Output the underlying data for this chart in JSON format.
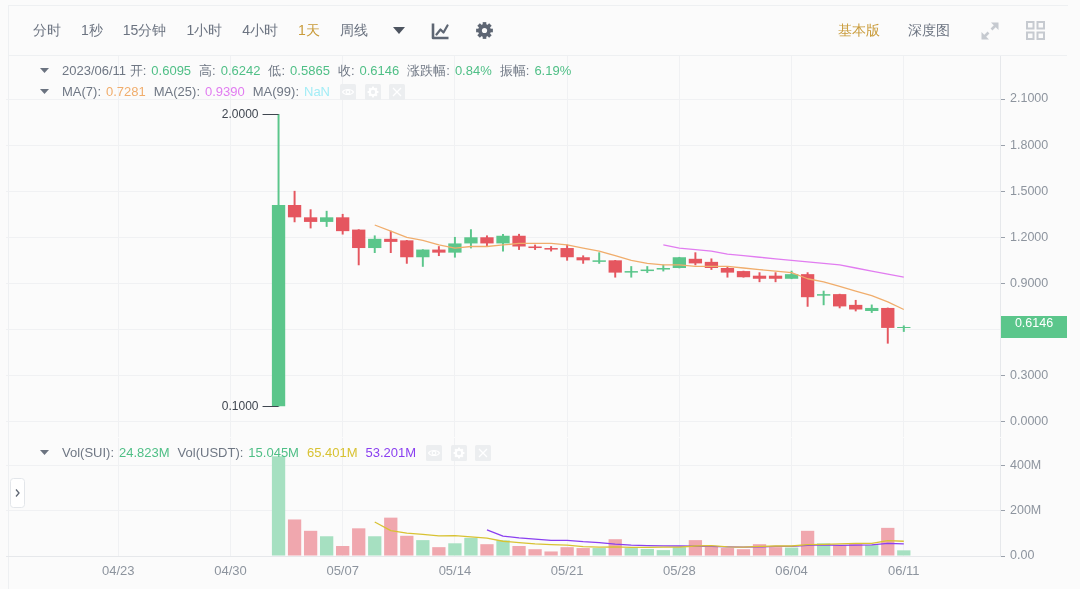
{
  "chart_data": [
    {
      "type": "other",
      "categories": [
        "分时",
        "1秒",
        "15分钟",
        "1小时",
        "4小时",
        "1天",
        "周线",
        "基本版",
        "深度图"
      ],
      "colors": [
        "#6b7380",
        "#6b7380",
        "#6b7380",
        "#6b7380",
        "#6b7380",
        "#c99b3a",
        "#6b7380",
        "#c99b3a",
        "#6b7380"
      ]
    },
    {
      "type": "candlestick",
      "x": [
        "2023-05-03",
        "2023-05-04",
        "2023-05-05",
        "2023-05-06",
        "2023-05-07",
        "2023-05-08",
        "2023-05-09",
        "2023-05-10",
        "2023-05-11",
        "2023-05-12",
        "2023-05-13",
        "2023-05-14",
        "2023-05-15",
        "2023-05-16",
        "2023-05-17",
        "2023-05-18",
        "2023-05-19",
        "2023-05-20",
        "2023-05-21",
        "2023-05-22",
        "2023-05-23",
        "2023-05-24",
        "2023-05-25",
        "2023-05-26",
        "2023-05-27",
        "2023-05-28",
        "2023-05-29",
        "2023-05-30",
        "2023-05-31",
        "2023-06-01",
        "2023-06-02",
        "2023-06-03",
        "2023-06-04",
        "2023-06-05",
        "2023-06-06",
        "2023-06-07",
        "2023-06-08",
        "2023-06-09",
        "2023-06-10",
        "2023-06-11"
      ],
      "ohlc": [
        [
          0.1,
          2.0,
          0.1,
          1.41
        ],
        [
          1.41,
          1.5,
          1.3,
          1.33
        ],
        [
          1.33,
          1.38,
          1.26,
          1.3
        ],
        [
          1.3,
          1.37,
          1.27,
          1.33
        ],
        [
          1.33,
          1.35,
          1.22,
          1.24
        ],
        [
          1.25,
          1.25,
          1.02,
          1.13
        ],
        [
          1.13,
          1.21,
          1.1,
          1.19
        ],
        [
          1.19,
          1.24,
          1.1,
          1.17
        ],
        [
          1.18,
          1.18,
          1.03,
          1.07
        ],
        [
          1.07,
          1.12,
          1.01,
          1.12
        ],
        [
          1.12,
          1.14,
          1.08,
          1.1
        ],
        [
          1.1,
          1.2,
          1.07,
          1.16
        ],
        [
          1.16,
          1.25,
          1.13,
          1.2
        ],
        [
          1.2,
          1.21,
          1.14,
          1.16
        ],
        [
          1.16,
          1.22,
          1.11,
          1.21
        ],
        [
          1.21,
          1.22,
          1.12,
          1.14
        ],
        [
          1.14,
          1.15,
          1.12,
          1.13
        ],
        [
          1.13,
          1.14,
          1.11,
          1.12
        ],
        [
          1.13,
          1.15,
          1.05,
          1.07
        ],
        [
          1.07,
          1.08,
          1.03,
          1.05
        ],
        [
          1.04,
          1.1,
          1.03,
          1.05
        ],
        [
          1.05,
          1.05,
          0.94,
          0.97
        ],
        [
          0.97,
          1.01,
          0.94,
          0.98
        ],
        [
          0.98,
          1.01,
          0.97,
          0.99
        ],
        [
          0.99,
          1.02,
          0.98,
          1.0
        ],
        [
          1.0,
          1.07,
          1.0,
          1.07
        ],
        [
          1.06,
          1.1,
          1.02,
          1.03
        ],
        [
          1.04,
          1.06,
          0.99,
          1.0
        ],
        [
          1.0,
          1.01,
          0.94,
          0.97
        ],
        [
          0.98,
          0.98,
          0.94,
          0.94
        ],
        [
          0.95,
          0.97,
          0.91,
          0.93
        ],
        [
          0.95,
          0.97,
          0.91,
          0.93
        ],
        [
          0.93,
          0.98,
          0.93,
          0.96
        ],
        [
          0.96,
          0.97,
          0.75,
          0.81
        ],
        [
          0.82,
          0.85,
          0.76,
          0.83
        ],
        [
          0.83,
          0.83,
          0.74,
          0.75
        ],
        [
          0.76,
          0.79,
          0.72,
          0.73
        ],
        [
          0.72,
          0.76,
          0.71,
          0.74
        ],
        [
          0.74,
          0.74,
          0.51,
          0.61
        ],
        [
          0.6095,
          0.6242,
          0.5865,
          0.6146
        ]
      ],
      "colors": [
        "#5bc68b",
        "#e5565f",
        "#e5565f",
        "#5bc68b",
        "#e5565f",
        "#e5565f",
        "#5bc68b",
        "#e5565f",
        "#e5565f",
        "#5bc68b",
        "#e5565f",
        "#5bc68b",
        "#5bc68b",
        "#e5565f",
        "#5bc68b",
        "#e5565f",
        "#e5565f",
        "#e5565f",
        "#e5565f",
        "#e5565f",
        "#5bc68b",
        "#e5565f",
        "#5bc68b",
        "#5bc68b",
        "#5bc68b",
        "#5bc68b",
        "#e5565f",
        "#e5565f",
        "#e5565f",
        "#e5565f",
        "#e5565f",
        "#e5565f",
        "#5bc68b",
        "#e5565f",
        "#5bc68b",
        "#e5565f",
        "#e5565f",
        "#5bc68b",
        "#e5565f",
        "#5bc68b"
      ],
      "series": [
        {
          "type": "line",
          "color": "#f0ad6c",
          "values": [
            null,
            null,
            null,
            null,
            null,
            null,
            1.28,
            1.24,
            1.2,
            1.18,
            1.15,
            1.13,
            1.14,
            1.14,
            1.15,
            1.16,
            1.16,
            1.16,
            1.15,
            1.13,
            1.11,
            1.08,
            1.05,
            1.03,
            1.02,
            1.02,
            1.01,
            1.01,
            1.01,
            1.0,
            0.99,
            0.98,
            0.97,
            0.93,
            0.91,
            0.88,
            0.85,
            0.82,
            0.78,
            0.73
          ]
        },
        {
          "type": "line",
          "color": "#e17cf0",
          "values": [
            null,
            null,
            null,
            null,
            null,
            null,
            null,
            null,
            null,
            null,
            null,
            null,
            null,
            null,
            null,
            null,
            null,
            null,
            null,
            null,
            null,
            null,
            null,
            null,
            1.15,
            1.13,
            1.12,
            1.11,
            1.09,
            1.08,
            1.07,
            1.06,
            1.05,
            1.04,
            1.03,
            1.02,
            1.0,
            0.98,
            0.96,
            0.94
          ]
        },
        {
          "type": "line",
          "color": "#a3edf6",
          "values": [
            null,
            null,
            null,
            null,
            null,
            null,
            null,
            null,
            null,
            null,
            null,
            null,
            null,
            null,
            null,
            null,
            null,
            null,
            null,
            null,
            null,
            null,
            null,
            null,
            null,
            null,
            null,
            null,
            null,
            null,
            null,
            null,
            null,
            null,
            null,
            null,
            null,
            null,
            null,
            null
          ]
        }
      ],
      "xlim": [
        "2023-04-16",
        "2023-06-17"
      ],
      "ylim": [
        -0.1,
        2.38
      ],
      "xticks": [
        {
          "value": "2023-04-23",
          "label": null
        },
        {
          "value": "2023-04-30",
          "label": null
        },
        {
          "value": "2023-05-07",
          "label": null
        },
        {
          "value": "2023-05-14",
          "label": null
        },
        {
          "value": "2023-05-21",
          "label": null
        },
        {
          "value": "2023-05-28",
          "label": null
        },
        {
          "value": "2023-06-04",
          "label": null
        },
        {
          "value": "2023-06-11",
          "label": null
        }
      ],
      "yticks": [
        {
          "value": 0,
          "label": "0.0000"
        },
        {
          "value": 0.3,
          "label": "0.3000"
        },
        {
          "value": 0.6,
          "label": null
        },
        {
          "value": 0.9,
          "label": "0.9000"
        },
        {
          "value": 1.2,
          "label": "1.2000"
        },
        {
          "value": 1.5,
          "label": "1.5000"
        },
        {
          "value": 1.8,
          "label": "1.8000"
        },
        {
          "value": 2.1,
          "label": "2.1000"
        }
      ],
      "grid": true,
      "tick_labels": "y",
      "annotations": [
        "2023/06/11 开:",
        "0.6095",
        "高:",
        "0.6242",
        "低:",
        "0.5865",
        "收:",
        "0.6146",
        "涨跌幅:",
        "0.84%",
        "振幅:",
        "6.19%",
        "MA(7):",
        "0.7281",
        "MA(25):",
        "0.9390",
        "MA(99):",
        "NaN",
        {
          "text": "2.0000",
          "x": "2023-05-03",
          "y": 2.0
        },
        {
          "text": "0.1000",
          "x": "2023-05-03",
          "y": 0.1
        },
        "0.6146"
      ]
    },
    {
      "type": "bar",
      "x": [
        "2023-05-03",
        "2023-05-04",
        "2023-05-05",
        "2023-05-06",
        "2023-05-07",
        "2023-05-08",
        "2023-05-09",
        "2023-05-10",
        "2023-05-11",
        "2023-05-12",
        "2023-05-13",
        "2023-05-14",
        "2023-05-15",
        "2023-05-16",
        "2023-05-17",
        "2023-05-18",
        "2023-05-19",
        "2023-05-20",
        "2023-05-21",
        "2023-05-22",
        "2023-05-23",
        "2023-05-24",
        "2023-05-25",
        "2023-05-26",
        "2023-05-27",
        "2023-05-28",
        "2023-05-29",
        "2023-05-30",
        "2023-05-31",
        "2023-06-01",
        "2023-06-02",
        "2023-06-03",
        "2023-06-04",
        "2023-06-05",
        "2023-06-06",
        "2023-06-07",
        "2023-06-08",
        "2023-06-09",
        "2023-06-10",
        "2023-06-11"
      ],
      "series": [
        {
          "values": [
            440,
            161,
            111,
            87,
            44,
            122,
            87,
            169,
            89,
            70,
            39,
            56,
            80,
            52,
            69,
            44,
            30,
            20,
            39,
            35,
            35,
            74,
            35,
            31,
            26,
            39,
            70,
            44,
            35,
            30,
            52,
            39,
            37,
            111,
            56,
            48,
            52,
            48,
            124,
            25
          ],
          "colors": [
            "#a6e0c1",
            "#f0a7ae",
            "#f0a7ae",
            "#a6e0c1",
            "#f0a7ae",
            "#f0a7ae",
            "#a6e0c1",
            "#f0a7ae",
            "#f0a7ae",
            "#a6e0c1",
            "#f0a7ae",
            "#a6e0c1",
            "#a6e0c1",
            "#f0a7ae",
            "#a6e0c1",
            "#f0a7ae",
            "#f0a7ae",
            "#f0a7ae",
            "#f0a7ae",
            "#f0a7ae",
            "#a6e0c1",
            "#f0a7ae",
            "#a6e0c1",
            "#a6e0c1",
            "#a6e0c1",
            "#a6e0c1",
            "#f0a7ae",
            "#f0a7ae",
            "#f0a7ae",
            "#f0a7ae",
            "#f0a7ae",
            "#f0a7ae",
            "#a6e0c1",
            "#f0a7ae",
            "#a6e0c1",
            "#f0a7ae",
            "#f0a7ae",
            "#a6e0c1",
            "#f0a7ae",
            "#a6e0c1"
          ]
        },
        {
          "type": "line",
          "color": "#d8c232",
          "values": [
            null,
            null,
            null,
            null,
            null,
            null,
            150,
            112,
            101,
            95,
            89,
            90,
            84,
            79,
            65,
            59,
            53,
            50,
            48,
            41,
            39,
            40,
            38,
            38,
            39,
            39,
            44,
            46,
            40,
            39,
            42,
            44,
            44,
            50,
            51,
            53,
            56,
            56,
            68,
            65
          ]
        },
        {
          "type": "line",
          "color": "#8a3ff0",
          "values": [
            null,
            null,
            null,
            null,
            null,
            null,
            null,
            null,
            null,
            null,
            null,
            null,
            null,
            115,
            88,
            80,
            74,
            69,
            69,
            63,
            59,
            52,
            48,
            46,
            45,
            44,
            43,
            42,
            40,
            39,
            40,
            42,
            42,
            47,
            49,
            47,
            48,
            49,
            56,
            53
          ]
        }
      ],
      "xlim": [
        "2023-04-16",
        "2023-06-17"
      ],
      "ylim": [
        0,
        520
      ],
      "xticks": [
        {
          "value": "2023-04-23",
          "label": "04/23"
        },
        {
          "value": "2023-04-30",
          "label": "04/30"
        },
        {
          "value": "2023-05-07",
          "label": "05/07"
        },
        {
          "value": "2023-05-14",
          "label": "05/14"
        },
        {
          "value": "2023-05-21",
          "label": "05/21"
        },
        {
          "value": "2023-05-28",
          "label": "05/28"
        },
        {
          "value": "2023-06-04",
          "label": "06/04"
        },
        {
          "value": "2023-06-11",
          "label": "06/11"
        }
      ],
      "yticks": [
        {
          "value": 0,
          "label": "0.00"
        },
        {
          "value": 200,
          "label": "200M"
        },
        {
          "value": 400,
          "label": "400M"
        }
      ],
      "grid": true,
      "annotations": [
        "Vol(SUI):",
        "24.823M",
        "Vol(USDT):",
        "15.045M",
        "65.401M",
        "53.201M"
      ]
    }
  ]
}
